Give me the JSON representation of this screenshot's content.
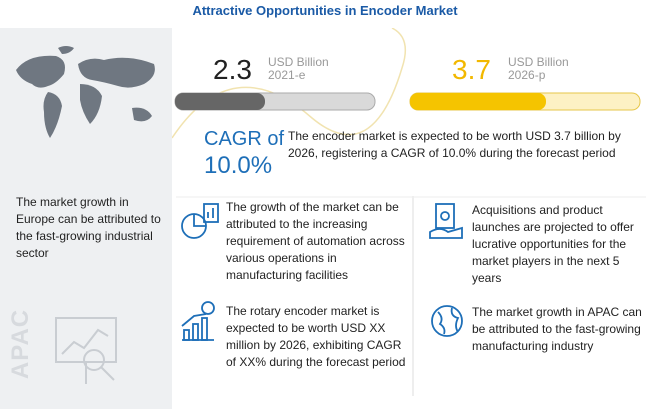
{
  "header": {
    "title": "Attractive Opportunities in Encoder Market"
  },
  "left_panel": {
    "text": "The market growth in Europe can be attributed to the fast-growing industrial sector",
    "region": "APAC"
  },
  "stats": [
    {
      "value": "2.3",
      "unit": "USD Billion",
      "year": "2021-e"
    },
    {
      "value": "3.7",
      "unit": "USD Billion",
      "year": "2026-p"
    }
  ],
  "cagr": {
    "label": "CAGR of",
    "value": "10.0%"
  },
  "summary": "The encoder market is expected to be worth USD 3.7 billion  by 2026, registering a CAGR of 10.0% during the forecast period",
  "insights": [
    "The growth of the market can be attributed to the increasing requirement of automation across various operations in manufacturing facilities",
    "Acquisitions and product launches are projected to offer lucrative opportunities for the market players in the next 5 years",
    "The rotary encoder market is expected to be worth USD XX million by 2026, exhibiting CAGR of XX% during the forecast period",
    "The market growth in APAC can be attributed to the fast-growing manufacturing industry"
  ]
}
